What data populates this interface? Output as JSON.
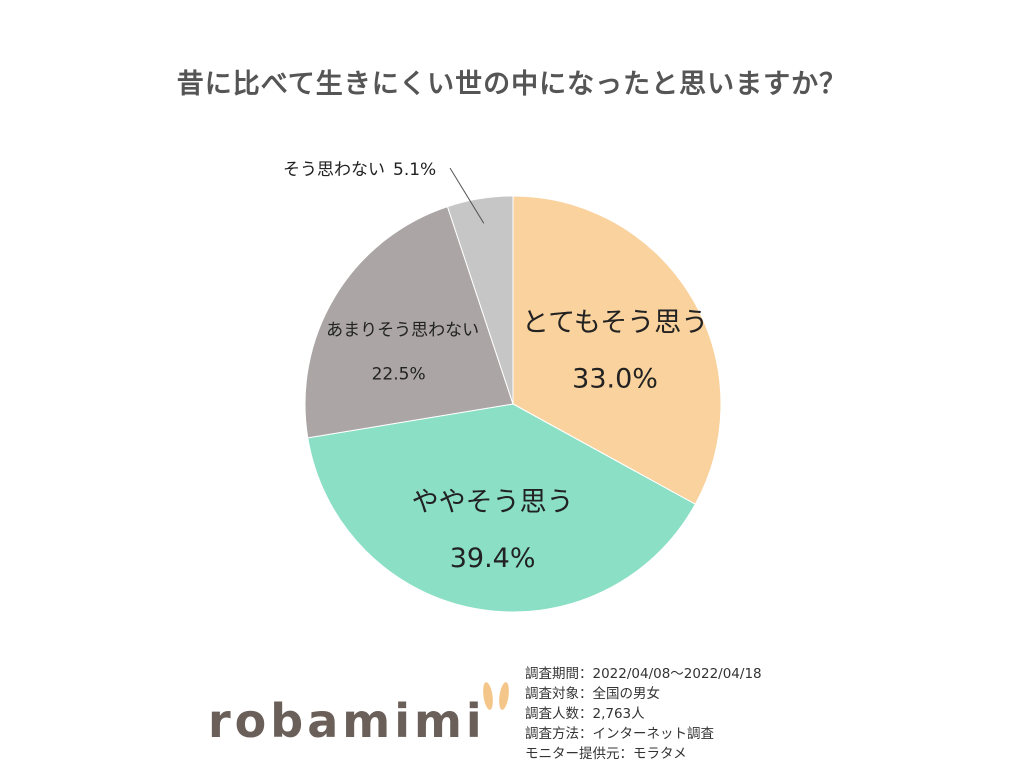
{
  "title": "昔に比べて生きにくい世の中になったと思いますか？",
  "chart_data": {
    "type": "pie",
    "title": "昔に比べて生きにくい世の中になったと思いますか？",
    "slices": [
      {
        "label": "とてもそう思う",
        "value": 33.0,
        "value_label": "33.0%",
        "color": "#f9d29d"
      },
      {
        "label": "ややそう思う",
        "value": 39.4,
        "value_label": "39.4%",
        "color": "#8adfc5"
      },
      {
        "label": "あまりそう思わない",
        "value": 22.5,
        "value_label": "22.5%",
        "color": "#aba6a5"
      },
      {
        "label": "そう思わない",
        "value": 5.1,
        "value_label": "5.1%",
        "color": "#c6c6c6"
      }
    ],
    "start": "12 o'clock",
    "direction": "clockwise"
  },
  "logo": {
    "text": "robamimi",
    "accent_color": "#f4c68a",
    "text_color": "#6b5f59"
  },
  "survey_info": [
    "調査期間：2022/04/08～2022/04/18",
    "調査対象：全国の男女",
    "調査人数：2,763人",
    "調査方法：インターネット調査",
    "モニター提供元：モラタメ"
  ]
}
